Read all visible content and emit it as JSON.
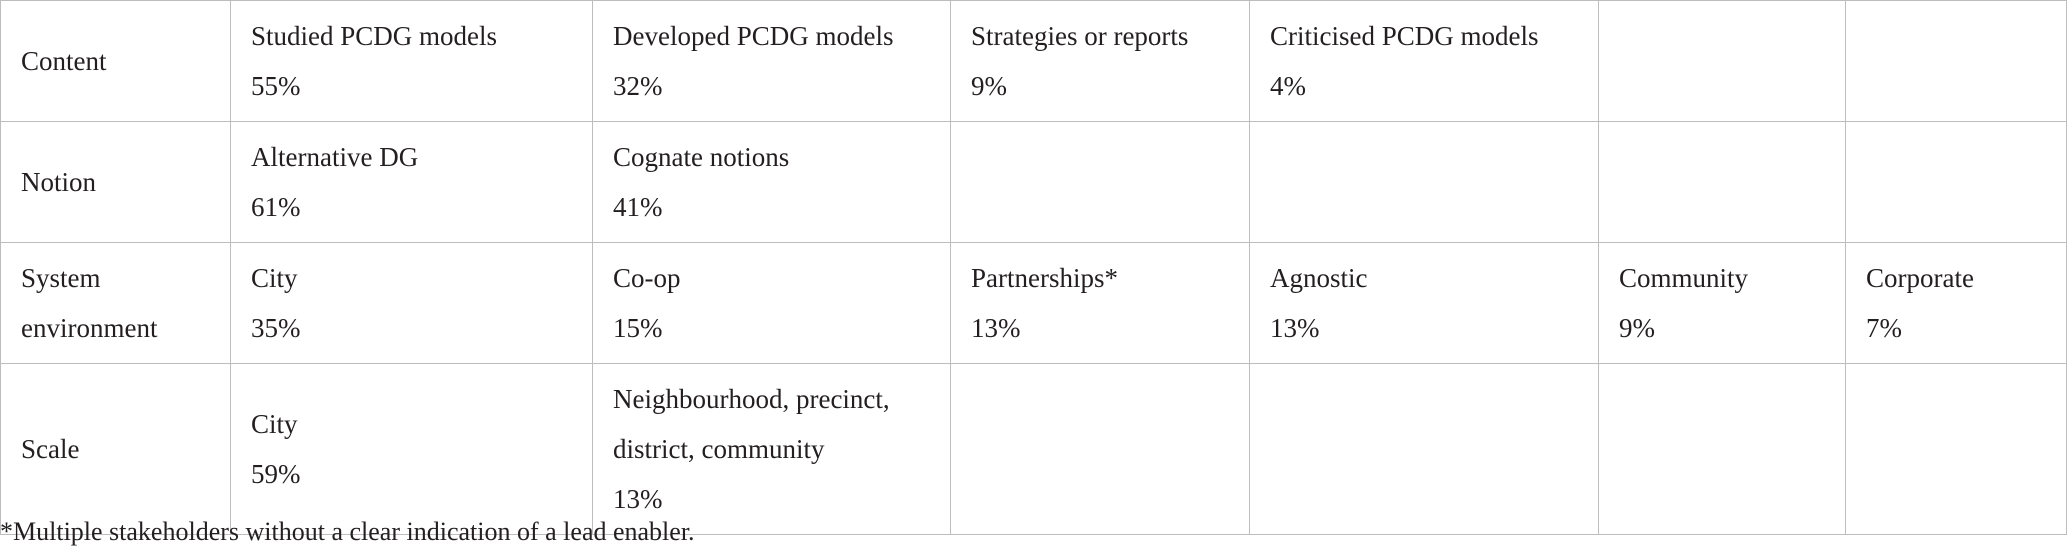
{
  "table": {
    "rows": [
      {
        "label": "Content",
        "cells": [
          {
            "name": "Studied PCDG models",
            "value": "55%"
          },
          {
            "name": "Developed PCDG models",
            "value": "32%"
          },
          {
            "name": "Strategies or reports",
            "value": "9%"
          },
          {
            "name": "Criticised PCDG models",
            "value": "4%"
          },
          {
            "name": "",
            "value": ""
          },
          {
            "name": "",
            "value": ""
          }
        ]
      },
      {
        "label": "Notion",
        "cells": [
          {
            "name": "Alternative DG",
            "value": "61%"
          },
          {
            "name": "Cognate notions",
            "value": "41%"
          },
          {
            "name": "",
            "value": ""
          },
          {
            "name": "",
            "value": ""
          },
          {
            "name": "",
            "value": ""
          },
          {
            "name": "",
            "value": ""
          }
        ]
      },
      {
        "label": "System environment",
        "cells": [
          {
            "name": "City",
            "value": "35%"
          },
          {
            "name": "Co-op",
            "value": "15%"
          },
          {
            "name": "Partnerships*",
            "value": "13%"
          },
          {
            "name": "Agnostic",
            "value": "13%"
          },
          {
            "name": "Community",
            "value": "9%"
          },
          {
            "name": "Corporate",
            "value": "7%"
          }
        ]
      },
      {
        "label": "Scale",
        "cells": [
          {
            "name": "City",
            "value": "59%"
          },
          {
            "name": "Neighbourhood, precinct, district, community",
            "value": "13%"
          },
          {
            "name": "",
            "value": ""
          },
          {
            "name": "",
            "value": ""
          },
          {
            "name": "",
            "value": ""
          },
          {
            "name": "",
            "value": ""
          }
        ]
      }
    ]
  },
  "footnote": "*Multiple stakeholders without a clear indication of a lead enabler."
}
